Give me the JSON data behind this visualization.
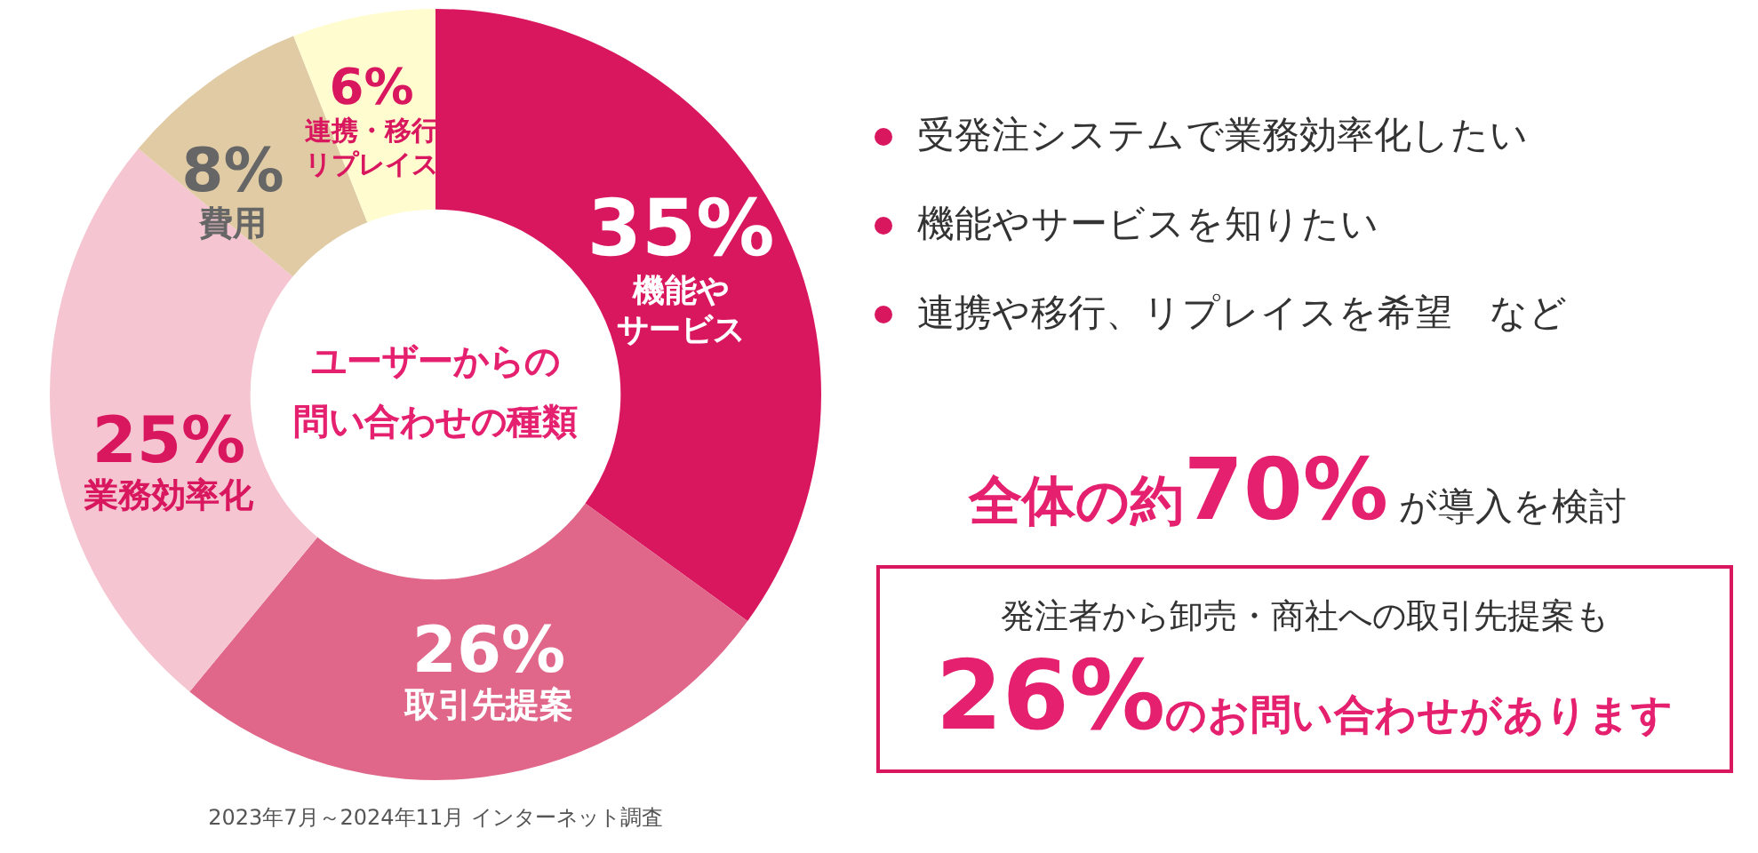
{
  "chart_data": {
    "type": "donut",
    "title": "ユーザーからの問い合わせの種類",
    "categories": [
      "機能やサービス",
      "取引先提案",
      "業務効率化",
      "費用",
      "連携・移行リプレイス"
    ],
    "values": [
      35,
      26,
      25,
      8,
      6
    ],
    "colors": [
      "#d9175f",
      "#e0678a",
      "#f5c6d2",
      "#e0cba4",
      "#fffccf"
    ],
    "value_labels": [
      "35%",
      "26%",
      "25%",
      "8%",
      "6%"
    ],
    "legend": false,
    "annotations": [
      "受発注システムで業務効率化したい",
      "機能やサービスを知りたい",
      "連携や移行、リプレイスを希望　など",
      "全体の約70%が導入を検討",
      "発注者から卸売・商社への取引先提案も",
      "26%のお問い合わせがあります",
      "2023年7月～2024年11月 インターネット調査"
    ]
  }
}
